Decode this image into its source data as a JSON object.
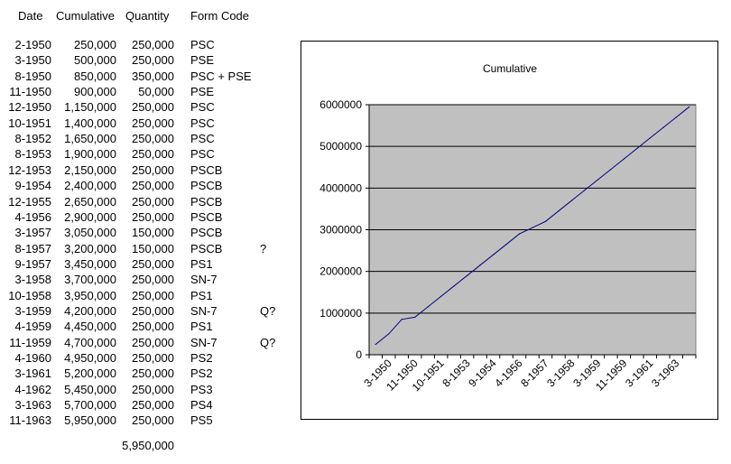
{
  "table": {
    "headers": [
      "Date",
      "Cumulative",
      "Quantity",
      "Form Code"
    ],
    "rows": [
      {
        "date": "2-1950",
        "cumulative": "250,000",
        "quantity": "250,000",
        "form": "PSC",
        "note": ""
      },
      {
        "date": "3-1950",
        "cumulative": "500,000",
        "quantity": "250,000",
        "form": "PSE",
        "note": ""
      },
      {
        "date": "8-1950",
        "cumulative": "850,000",
        "quantity": "350,000",
        "form": "PSC + PSE",
        "note": ""
      },
      {
        "date": "11-1950",
        "cumulative": "900,000",
        "quantity": "50,000",
        "form": "PSE",
        "note": ""
      },
      {
        "date": "12-1950",
        "cumulative": "1,150,000",
        "quantity": "250,000",
        "form": "PSC",
        "note": ""
      },
      {
        "date": "10-1951",
        "cumulative": "1,400,000",
        "quantity": "250,000",
        "form": "PSC",
        "note": ""
      },
      {
        "date": "8-1952",
        "cumulative": "1,650,000",
        "quantity": "250,000",
        "form": "PSC",
        "note": ""
      },
      {
        "date": "8-1953",
        "cumulative": "1,900,000",
        "quantity": "250,000",
        "form": "PSC",
        "note": ""
      },
      {
        "date": "12-1953",
        "cumulative": "2,150,000",
        "quantity": "250,000",
        "form": "PSCB",
        "note": ""
      },
      {
        "date": "9-1954",
        "cumulative": "2,400,000",
        "quantity": "250,000",
        "form": "PSCB",
        "note": ""
      },
      {
        "date": "12-1955",
        "cumulative": "2,650,000",
        "quantity": "250,000",
        "form": "PSCB",
        "note": ""
      },
      {
        "date": "4-1956",
        "cumulative": "2,900,000",
        "quantity": "250,000",
        "form": "PSCB",
        "note": ""
      },
      {
        "date": "3-1957",
        "cumulative": "3,050,000",
        "quantity": "150,000",
        "form": "PSCB",
        "note": ""
      },
      {
        "date": "8-1957",
        "cumulative": "3,200,000",
        "quantity": "150,000",
        "form": "PSCB",
        "note": "?"
      },
      {
        "date": "9-1957",
        "cumulative": "3,450,000",
        "quantity": "250,000",
        "form": "PS1",
        "note": ""
      },
      {
        "date": "3-1958",
        "cumulative": "3,700,000",
        "quantity": "250,000",
        "form": "SN-7",
        "note": ""
      },
      {
        "date": "10-1958",
        "cumulative": "3,950,000",
        "quantity": "250,000",
        "form": "PS1",
        "note": ""
      },
      {
        "date": "3-1959",
        "cumulative": "4,200,000",
        "quantity": "250,000",
        "form": "SN-7",
        "note": "Q?"
      },
      {
        "date": "4-1959",
        "cumulative": "4,450,000",
        "quantity": "250,000",
        "form": "PS1",
        "note": ""
      },
      {
        "date": "11-1959",
        "cumulative": "4,700,000",
        "quantity": "250,000",
        "form": "SN-7",
        "note": "Q?"
      },
      {
        "date": "4-1960",
        "cumulative": "4,950,000",
        "quantity": "250,000",
        "form": "PS2",
        "note": ""
      },
      {
        "date": "3-1961",
        "cumulative": "5,200,000",
        "quantity": "250,000",
        "form": "PS2",
        "note": ""
      },
      {
        "date": "4-1962",
        "cumulative": "5,450,000",
        "quantity": "250,000",
        "form": "PS3",
        "note": ""
      },
      {
        "date": "3-1963",
        "cumulative": "5,700,000",
        "quantity": "250,000",
        "form": "PS4",
        "note": ""
      },
      {
        "date": "11-1963",
        "cumulative": "5,950,000",
        "quantity": "250,000",
        "form": "PS5",
        "note": ""
      }
    ],
    "total": "5,950,000"
  },
  "chart_data": {
    "type": "line",
    "title": "Cumulative",
    "categories": [
      "2-1950",
      "3-1950",
      "8-1950",
      "11-1950",
      "12-1950",
      "10-1951",
      "8-1952",
      "8-1953",
      "12-1953",
      "9-1954",
      "12-1955",
      "4-1956",
      "3-1957",
      "8-1957",
      "9-1957",
      "3-1958",
      "10-1958",
      "3-1959",
      "4-1959",
      "11-1959",
      "4-1960",
      "3-1961",
      "4-1962",
      "3-1963",
      "11-1963"
    ],
    "x_tick_labels": [
      "3-1950",
      "11-1950",
      "10-1951",
      "8-1953",
      "9-1954",
      "4-1956",
      "8-1957",
      "3-1958",
      "3-1959",
      "11-1959",
      "3-1961",
      "3-1963"
    ],
    "series": [
      {
        "values": [
          250000,
          500000,
          850000,
          900000,
          1150000,
          1400000,
          1650000,
          1900000,
          2150000,
          2400000,
          2650000,
          2900000,
          3050000,
          3200000,
          3450000,
          3700000,
          3950000,
          4200000,
          4450000,
          4700000,
          4950000,
          5200000,
          5450000,
          5700000,
          5950000
        ]
      }
    ],
    "ylim": [
      0,
      6000000
    ],
    "y_ticks": [
      "0",
      "1000000",
      "2000000",
      "3000000",
      "4000000",
      "5000000",
      "6000000"
    ],
    "grid": true,
    "plot_background": "#c0c0c0",
    "line_color": "#000080",
    "legend": "none"
  }
}
